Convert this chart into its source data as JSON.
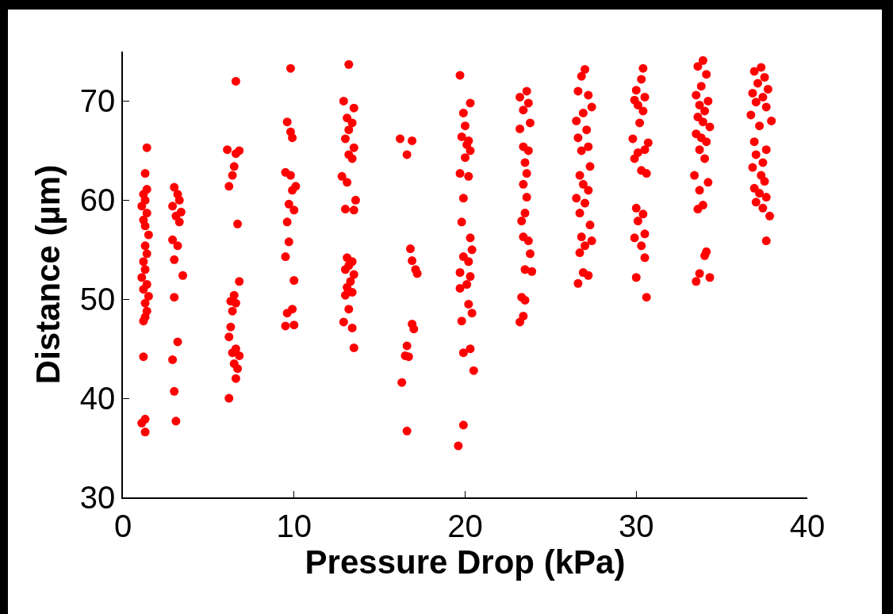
{
  "chart_data": {
    "type": "scatter",
    "xlabel": "Pressure Drop (kPa)",
    "ylabel": "Distance (µm)",
    "xlim": [
      0,
      40
    ],
    "ylim": [
      30,
      75
    ],
    "xticks": [
      0,
      10,
      20,
      30,
      40
    ],
    "yticks": [
      30,
      40,
      50,
      60,
      70
    ],
    "grid": false,
    "marker": "circle",
    "series": [
      {
        "color": "#ff0000",
        "x": [
          1.4,
          1.3,
          1.4,
          1.2,
          1.3,
          1.1,
          1.4,
          1.2,
          1.3,
          1.5,
          1.3,
          1.4,
          1.2,
          1.3,
          1.1,
          1.4,
          1.2,
          1.5,
          1.3,
          1.4,
          1.3,
          1.2,
          1.2,
          1.3,
          1.1,
          1.3,
          3.0,
          3.2,
          3.3,
          2.9,
          3.4,
          3.1,
          3.3,
          2.9,
          3.2,
          3.0,
          3.5,
          3.0,
          3.2,
          2.9,
          3.0,
          3.1,
          6.6,
          6.1,
          6.8,
          6.6,
          6.5,
          6.4,
          6.2,
          6.7,
          6.8,
          6.5,
          6.3,
          6.6,
          6.4,
          6.3,
          6.2,
          6.6,
          6.4,
          6.8,
          6.5,
          6.7,
          6.6,
          6.2,
          9.8,
          9.6,
          9.8,
          9.9,
          9.5,
          9.8,
          10.1,
          9.9,
          9.7,
          10.0,
          9.6,
          9.7,
          9.5,
          10.0,
          9.9,
          9.6,
          10.0,
          9.5,
          13.2,
          12.9,
          13.5,
          13.1,
          13.4,
          13.2,
          13.0,
          13.5,
          13.2,
          13.4,
          12.8,
          13.1,
          13.6,
          13.0,
          13.5,
          13.1,
          13.4,
          13.2,
          13.0,
          13.5,
          13.3,
          13.1,
          13.4,
          13.0,
          13.2,
          12.9,
          13.4,
          13.5,
          16.2,
          16.9,
          16.6,
          16.8,
          16.9,
          17.1,
          17.2,
          16.9,
          17.0,
          16.6,
          16.5,
          16.7,
          16.3,
          16.6,
          19.7,
          20.3,
          19.9,
          20.0,
          19.8,
          20.2,
          20.1,
          20.3,
          20.0,
          19.7,
          20.2,
          19.9,
          19.8,
          20.3,
          20.4,
          19.9,
          20.2,
          19.7,
          20.3,
          20.1,
          19.7,
          20.2,
          20.4,
          19.8,
          20.3,
          19.9,
          20.5,
          19.9,
          19.6,
          23.6,
          23.2,
          23.7,
          23.4,
          23.8,
          23.2,
          23.4,
          23.7,
          23.5,
          23.6,
          23.4,
          23.6,
          23.5,
          23.3,
          23.4,
          23.7,
          23.8,
          23.5,
          23.9,
          23.3,
          23.5,
          23.4,
          23.2,
          27.0,
          26.8,
          26.6,
          27.2,
          27.4,
          26.9,
          26.5,
          27.1,
          26.6,
          27.2,
          26.8,
          27.3,
          26.7,
          26.9,
          27.2,
          26.5,
          27.0,
          26.7,
          27.3,
          26.8,
          27.4,
          27.0,
          26.7,
          26.9,
          27.2,
          26.6,
          30.4,
          30.3,
          30.0,
          30.5,
          29.9,
          30.1,
          30.4,
          30.2,
          29.8,
          30.7,
          30.5,
          30.1,
          29.9,
          30.3,
          30.6,
          30.0,
          30.4,
          30.1,
          30.5,
          29.9,
          30.3,
          30.5,
          30.0,
          30.6,
          33.9,
          33.6,
          34.1,
          33.8,
          33.5,
          34.2,
          33.7,
          34.0,
          33.6,
          33.9,
          34.3,
          33.5,
          33.8,
          34.1,
          33.7,
          34.0,
          33.4,
          34.2,
          33.7,
          33.9,
          33.6,
          34.1,
          34.0,
          33.7,
          34.3,
          33.5,
          37.3,
          36.9,
          37.5,
          37.1,
          37.7,
          36.8,
          37.4,
          37.0,
          37.6,
          36.7,
          37.9,
          37.2,
          36.9,
          37.6,
          37.0,
          37.4,
          36.8,
          37.3,
          37.5,
          36.9,
          37.2,
          37.6,
          37.0,
          37.4,
          37.8,
          37.6
        ],
        "values": [
          65.3,
          62.7,
          61.1,
          60.6,
          60,
          59.4,
          58.7,
          58,
          57.4,
          56.5,
          55.4,
          54.6,
          53.8,
          53,
          52.2,
          51.5,
          51,
          50.3,
          49.6,
          48.8,
          48.2,
          47.8,
          44.2,
          37.9,
          37.5,
          36.6,
          61.3,
          60.6,
          60,
          59.4,
          58.8,
          58.4,
          57.8,
          56,
          55.4,
          54,
          52.4,
          50.2,
          45.7,
          43.9,
          40.7,
          37.7,
          72,
          65.1,
          65,
          64.7,
          63.4,
          62.5,
          61.4,
          57.6,
          51.8,
          50.4,
          49.8,
          49.6,
          48.8,
          47.2,
          46.2,
          45,
          44.6,
          44.3,
          43.5,
          43,
          42,
          40,
          73.3,
          67.9,
          66.9,
          66.3,
          62.8,
          62.5,
          61.4,
          61,
          59.6,
          59,
          57.8,
          55.8,
          54.3,
          51.9,
          49,
          48.6,
          47.4,
          47.3,
          73.7,
          70,
          69.3,
          68.3,
          67.8,
          67.1,
          66.2,
          65.3,
          64.6,
          64.2,
          62.4,
          61.8,
          60,
          59.1,
          59,
          54.2,
          53.8,
          53.4,
          53,
          52.5,
          51.8,
          51.2,
          50.7,
          50.4,
          49,
          47.7,
          47.1,
          45.1,
          66.2,
          66,
          64.6,
          55.1,
          53.9,
          53,
          52.6,
          47.5,
          47,
          45.3,
          44.3,
          44.2,
          41.6,
          36.7,
          72.6,
          69.8,
          68.8,
          67.5,
          66.4,
          66,
          65.6,
          65,
          64.3,
          62.7,
          62.4,
          60.2,
          57.8,
          56.2,
          55,
          54.3,
          53.8,
          52.7,
          52.3,
          51.5,
          51.1,
          49.5,
          48.6,
          47.8,
          45,
          44.6,
          42.8,
          37.3,
          35.2,
          71,
          70.4,
          69.8,
          69.1,
          67.8,
          67.2,
          65.4,
          65,
          63.8,
          62.7,
          61.6,
          60.3,
          58.7,
          57.9,
          56.3,
          55.9,
          54.6,
          53,
          52.8,
          50.2,
          49.9,
          48.3,
          47.7,
          73.2,
          72.5,
          71,
          70.6,
          69.4,
          68.8,
          68,
          67.1,
          66.3,
          65.4,
          65,
          63.4,
          62.5,
          61.6,
          61,
          60.2,
          59.7,
          58.7,
          57.5,
          56.3,
          55.9,
          55.4,
          54.7,
          52.7,
          52.4,
          51.6,
          73.3,
          72.2,
          71.1,
          70.4,
          70.1,
          69.6,
          69,
          67.8,
          66.2,
          65.8,
          65.1,
          64.8,
          64.2,
          63,
          62.7,
          59.2,
          58.6,
          57.9,
          56.6,
          56.2,
          55.4,
          54.2,
          52.2,
          50.2,
          74.1,
          73.5,
          72.7,
          71.5,
          70.6,
          70,
          69.6,
          69,
          68.4,
          67.9,
          67.4,
          66.7,
          66.3,
          65.9,
          65.1,
          64.2,
          62.5,
          61.8,
          61,
          59.5,
          59.1,
          54.8,
          54.4,
          52.6,
          52.2,
          51.8,
          73.4,
          73,
          72.4,
          71.8,
          71.2,
          70.8,
          70.4,
          69.9,
          69.4,
          68.6,
          68,
          67.5,
          65.9,
          65.1,
          64.6,
          63.8,
          63.3,
          62.5,
          61.9,
          61.2,
          60.7,
          60.3,
          59.8,
          59.2,
          58.4,
          55.9
        ]
      }
    ]
  }
}
